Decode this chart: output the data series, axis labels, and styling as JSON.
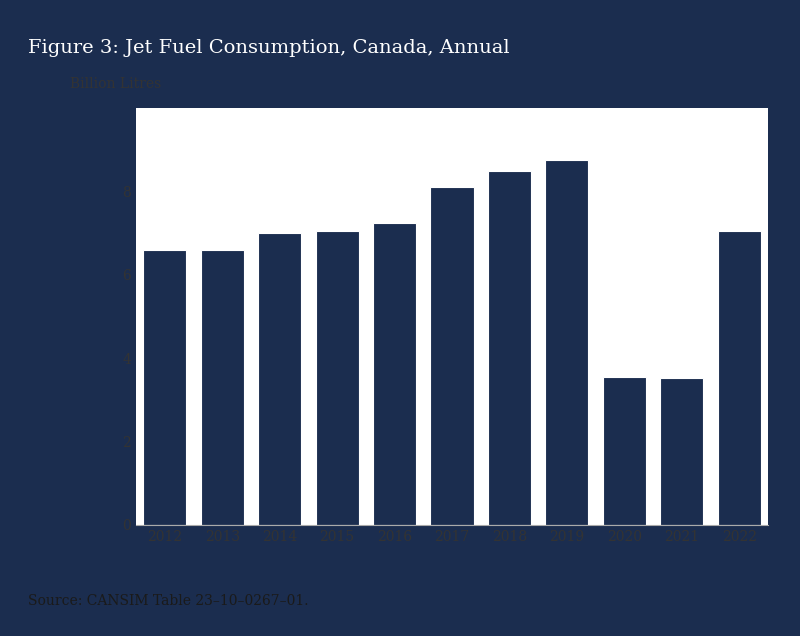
{
  "title": "Figure 3: Jet Fuel Consumption, Canada, Annual",
  "source": "Source: CANSIM Table 23–10–0267–01.",
  "ylabel": "Billion Litres",
  "years": [
    2012,
    2013,
    2014,
    2015,
    2016,
    2017,
    2018,
    2019,
    2020,
    2021,
    2022
  ],
  "values": [
    6.6,
    6.6,
    7.0,
    7.05,
    7.25,
    8.1,
    8.5,
    8.75,
    3.55,
    3.52,
    7.05
  ],
  "bar_color": "#1b2d4f",
  "ylim": [
    0,
    10
  ],
  "yticks": [
    0,
    2,
    4,
    6,
    8
  ],
  "title_bg_color": "#1b2d4f",
  "title_text_color": "#ffffff",
  "source_bg_color": "#8a97aa",
  "source_text_color": "#1a1a1a",
  "plot_bg_color": "#ffffff",
  "outer_bg_color": "#1b2d4f",
  "white_panel_color": "#ffffff",
  "spine_color": "#aaaaaa",
  "title_fontsize": 14,
  "tick_fontsize": 10,
  "label_fontsize": 10,
  "source_fontsize": 10
}
